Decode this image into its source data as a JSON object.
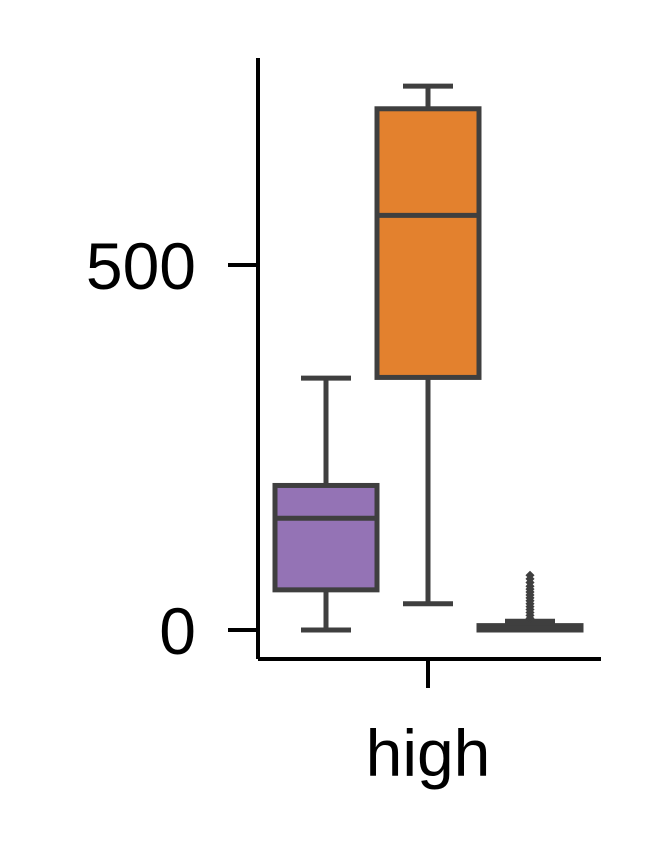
{
  "chart_data": {
    "type": "box",
    "title": "",
    "xlabel": "",
    "ylabel": "",
    "categories": [
      "high"
    ],
    "y_ticks": [
      0,
      500
    ],
    "ylim": [
      -40,
      780
    ],
    "grid": false,
    "legend": "none",
    "groups": [
      {
        "category": "high",
        "color": "#9473b5",
        "whisker_low": 0,
        "q1": 55,
        "median": 153,
        "q3": 198,
        "whisker_high": 345,
        "outliers": []
      },
      {
        "category": "high",
        "color": "#e3812e",
        "whisker_low": 36,
        "q1": 346,
        "median": 568,
        "q3": 714,
        "whisker_high": 745,
        "outliers": []
      },
      {
        "category": "high",
        "color": "#3a923a",
        "whisker_low": 0,
        "q1": 0,
        "median": 3,
        "q3": 6,
        "whisker_high": 12,
        "outliers": [
          16,
          20,
          24,
          28,
          32,
          36,
          40,
          44,
          48,
          52,
          56,
          60,
          65,
          70,
          75
        ]
      }
    ]
  }
}
